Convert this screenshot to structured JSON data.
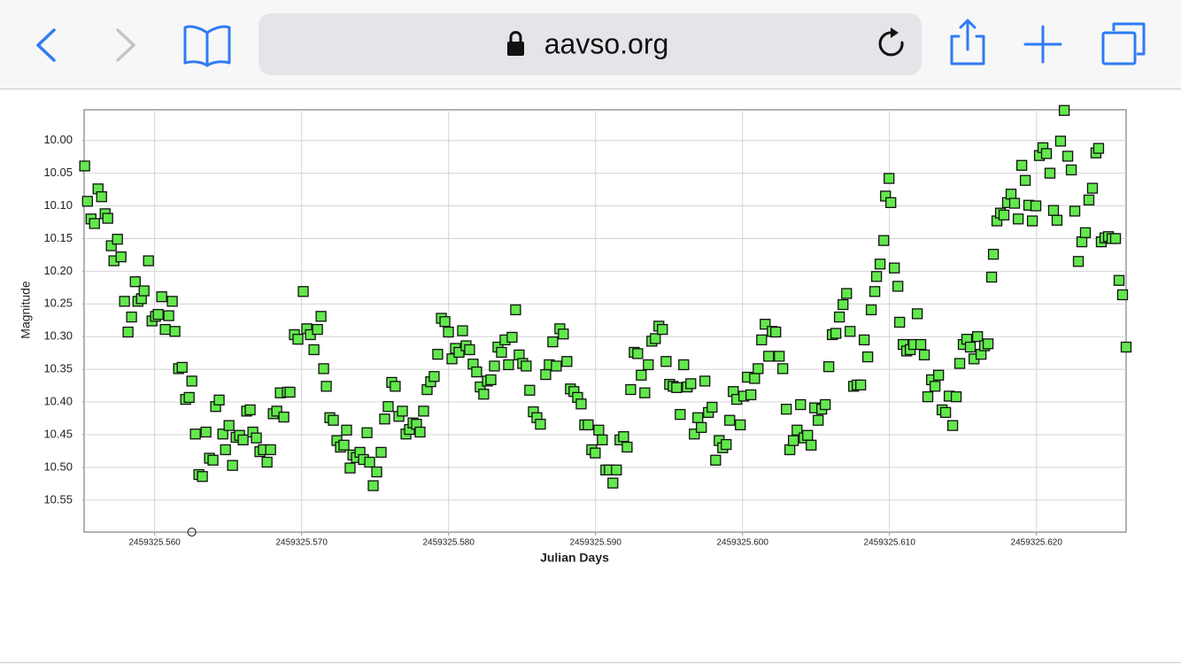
{
  "browser": {
    "url": "aavso.org"
  },
  "chart_data": {
    "type": "scatter",
    "x_label": "Julian Days",
    "y_label": "Magnitude",
    "xlim": [
      2459325.5552,
      2459325.6261
    ],
    "ylim": [
      9.953,
      10.599
    ],
    "y_inverted": true,
    "grid": true,
    "xticks": [
      {
        "value": 2459325.56,
        "label": "2459325.560"
      },
      {
        "value": 2459325.57,
        "label": "2459325.570"
      },
      {
        "value": 2459325.58,
        "label": "2459325.580"
      },
      {
        "value": 2459325.59,
        "label": "2459325.590"
      },
      {
        "value": 2459325.6,
        "label": "2459325.600"
      },
      {
        "value": 2459325.61,
        "label": "2459325.610"
      },
      {
        "value": 2459325.62,
        "label": "2459325.620"
      }
    ],
    "yticks": [
      {
        "value": 10,
        "label": "10.00"
      },
      {
        "value": 10.05,
        "label": "10.05"
      },
      {
        "value": 10.1,
        "label": "10.10"
      },
      {
        "value": 10.15,
        "label": "10.15"
      },
      {
        "value": 10.2,
        "label": "10.20"
      },
      {
        "value": 10.25,
        "label": "10.25"
      },
      {
        "value": 10.3,
        "label": "10.30"
      },
      {
        "value": 10.35,
        "label": "10.35"
      },
      {
        "value": 10.4,
        "label": "10.40"
      },
      {
        "value": 10.45,
        "label": "10.45"
      },
      {
        "value": 10.5,
        "label": "10.50"
      },
      {
        "value": 10.55,
        "label": "10.55"
      }
    ],
    "series": [
      {
        "marker": "square",
        "color": "#62e84c",
        "x": [
          2459325.55524,
          2459325.55543,
          2459325.55567,
          2459325.55591,
          2459325.55615,
          2459325.55639,
          2459325.55663,
          2459325.55681,
          2459325.55705,
          2459325.55723,
          2459325.55747,
          2459325.55771,
          2459325.55795,
          2459325.55819,
          2459325.55843,
          2459325.55868,
          2459325.55886,
          2459325.5591,
          2459325.55928,
          2459325.55958,
          2459325.55982,
          2459325.56006,
          2459325.56024,
          2459325.56048,
          2459325.56072,
          2459325.56096,
          2459325.5612,
          2459325.56138,
          2459325.56163,
          2459325.56187,
          2459325.56211,
          2459325.56235,
          2459325.56253,
          2459325.56277,
          2459325.56301,
          2459325.56325,
          2459325.56349,
          2459325.56373,
          2459325.56397,
          2459325.56415,
          2459325.56439,
          2459325.56464,
          2459325.56482,
          2459325.56506,
          2459325.5653,
          2459325.56554,
          2459325.56578,
          2459325.56602,
          2459325.56626,
          2459325.5665,
          2459325.56668,
          2459325.56692,
          2459325.56716,
          2459325.5674,
          2459325.56765,
          2459325.56789,
          2459325.56807,
          2459325.56831,
          2459325.56855,
          2459325.56879,
          2459325.56903,
          2459325.56921,
          2459325.56951,
          2459325.56975,
          2459325.57011,
          2459325.57035,
          2459325.5706,
          2459325.57084,
          2459325.57108,
          2459325.57132,
          2459325.5715,
          2459325.57168,
          2459325.57192,
          2459325.57216,
          2459325.5724,
          2459325.57264,
          2459325.57288,
          2459325.57306,
          2459325.5733,
          2459325.57349,
          2459325.57373,
          2459325.57397,
          2459325.57421,
          2459325.57445,
          2459325.57463,
          2459325.57487,
          2459325.57511,
          2459325.57541,
          2459325.57565,
          2459325.57589,
          2459325.57613,
          2459325.57637,
          2459325.57662,
          2459325.57686,
          2459325.5771,
          2459325.57734,
          2459325.57758,
          2459325.57782,
          2459325.57806,
          2459325.5783,
          2459325.57854,
          2459325.57878,
          2459325.57902,
          2459325.57926,
          2459325.57951,
          2459325.57975,
          2459325.57999,
          2459325.58023,
          2459325.58047,
          2459325.58071,
          2459325.58095,
          2459325.58119,
          2459325.58143,
          2459325.58167,
          2459325.58191,
          2459325.58215,
          2459325.58239,
          2459325.58264,
          2459325.58288,
          2459325.58312,
          2459325.58336,
          2459325.5836,
          2459325.58384,
          2459325.58408,
          2459325.58432,
          2459325.58456,
          2459325.5848,
          2459325.58504,
          2459325.58528,
          2459325.58552,
          2459325.58577,
          2459325.58601,
          2459325.58625,
          2459325.58661,
          2459325.58685,
          2459325.58709,
          2459325.58733,
          2459325.58757,
          2459325.58781,
          2459325.58805,
          2459325.58829,
          2459325.58853,
          2459325.58878,
          2459325.58902,
          2459325.58926,
          2459325.5895,
          2459325.58974,
          2459325.58998,
          2459325.59022,
          2459325.59046,
          2459325.5907,
          2459325.59094,
          2459325.59118,
          2459325.59142,
          2459325.59166,
          2459325.59191,
          2459325.59215,
          2459325.59239,
          2459325.59263,
          2459325.59287,
          2459325.59311,
          2459325.59335,
          2459325.59359,
          2459325.59383,
          2459325.59407,
          2459325.59431,
          2459325.59455,
          2459325.5948,
          2459325.59504,
          2459325.59528,
          2459325.59552,
          2459325.59576,
          2459325.596,
          2459325.59624,
          2459325.59648,
          2459325.59672,
          2459325.59696,
          2459325.5972,
          2459325.59744,
          2459325.59768,
          2459325.59793,
          2459325.59817,
          2459325.59841,
          2459325.59865,
          2459325.59889,
          2459325.59913,
          2459325.59937,
          2459325.59961,
          2459325.59985,
          2459325.60009,
          2459325.60033,
          2459325.60057,
          2459325.60082,
          2459325.60106,
          2459325.6013,
          2459325.60154,
          2459325.60178,
          2459325.60202,
          2459325.60226,
          2459325.6025,
          2459325.60274,
          2459325.60298,
          2459325.60322,
          2459325.60346,
          2459325.60371,
          2459325.60395,
          2459325.60419,
          2459325.60443,
          2459325.60467,
          2459325.60491,
          2459325.60515,
          2459325.60539,
          2459325.60563,
          2459325.60587,
          2459325.60611,
          2459325.60635,
          2459325.60659,
          2459325.60684,
          2459325.60708,
          2459325.60732,
          2459325.60756,
          2459325.6078,
          2459325.60804,
          2459325.60828,
          2459325.60852,
          2459325.60876,
          2459325.609,
          2459325.60912,
          2459325.60936,
          2459325.60961,
          2459325.60973,
          2459325.60997,
          2459325.61009,
          2459325.61033,
          2459325.61057,
          2459325.61069,
          2459325.61093,
          2459325.61117,
          2459325.61141,
          2459325.61165,
          2459325.61189,
          2459325.61213,
          2459325.61237,
          2459325.61261,
          2459325.61286,
          2459325.6131,
          2459325.61334,
          2459325.61358,
          2459325.61382,
          2459325.61406,
          2459325.6143,
          2459325.61454,
          2459325.61478,
          2459325.61502,
          2459325.61526,
          2459325.6155,
          2459325.61575,
          2459325.61599,
          2459325.61623,
          2459325.61647,
          2459325.61671,
          2459325.61695,
          2459325.61707,
          2459325.61731,
          2459325.61755,
          2459325.61779,
          2459325.61803,
          2459325.61827,
          2459325.61851,
          2459325.61876,
          2459325.619,
          2459325.61924,
          2459325.61948,
          2459325.61972,
          2459325.61996,
          2459325.6202,
          2459325.62044,
          2459325.62068,
          2459325.62092,
          2459325.62116,
          2459325.6214,
          2459325.62164,
          2459325.62189,
          2459325.62213,
          2459325.62237,
          2459325.62261,
          2459325.62285,
          2459325.62309,
          2459325.62333,
          2459325.62357,
          2459325.62381,
          2459325.62405,
          2459325.62423,
          2459325.62441,
          2459325.62466,
          2459325.6249,
          2459325.62514,
          2459325.62538,
          2459325.62562,
          2459325.62586,
          2459325.6261
        ],
        "values": [
          10.039,
          10.093,
          10.12,
          10.127,
          10.074,
          10.086,
          10.112,
          10.119,
          10.161,
          10.184,
          10.151,
          10.178,
          10.246,
          10.293,
          10.27,
          10.216,
          10.246,
          10.242,
          10.23,
          10.184,
          10.276,
          10.269,
          10.266,
          10.239,
          10.289,
          10.268,
          10.246,
          10.292,
          10.349,
          10.347,
          10.396,
          10.393,
          10.368,
          10.449,
          10.511,
          10.514,
          10.446,
          10.486,
          10.489,
          10.407,
          10.397,
          10.449,
          10.473,
          10.436,
          10.497,
          10.454,
          10.451,
          10.458,
          10.414,
          10.412,
          10.446,
          10.455,
          10.476,
          10.473,
          10.492,
          10.473,
          10.418,
          10.414,
          10.386,
          10.423,
          10.385,
          10.385,
          10.297,
          10.304,
          10.231,
          10.288,
          10.297,
          10.32,
          10.289,
          10.269,
          10.349,
          10.376,
          10.424,
          10.428,
          10.459,
          10.469,
          10.466,
          10.443,
          10.501,
          10.481,
          10.485,
          10.477,
          10.488,
          10.447,
          10.492,
          10.528,
          10.507,
          10.477,
          10.426,
          10.407,
          10.37,
          10.376,
          10.422,
          10.414,
          10.449,
          10.442,
          10.432,
          10.434,
          10.446,
          10.414,
          10.381,
          10.369,
          10.361,
          10.327,
          10.272,
          10.277,
          10.293,
          10.334,
          10.318,
          10.324,
          10.291,
          10.314,
          10.32,
          10.342,
          10.354,
          10.377,
          10.388,
          10.368,
          10.366,
          10.345,
          10.316,
          10.324,
          10.305,
          10.343,
          10.301,
          10.259,
          10.328,
          10.341,
          10.345,
          10.382,
          10.415,
          10.424,
          10.434,
          10.358,
          10.343,
          10.308,
          10.345,
          10.288,
          10.296,
          10.338,
          10.38,
          10.384,
          10.393,
          10.403,
          10.435,
          10.435,
          10.473,
          10.478,
          10.443,
          10.458,
          10.504,
          10.504,
          10.524,
          10.504,
          10.458,
          10.453,
          10.469,
          10.381,
          10.324,
          10.326,
          10.359,
          10.386,
          10.343,
          10.307,
          10.303,
          10.284,
          10.289,
          10.338,
          10.373,
          10.376,
          10.378,
          10.419,
          10.343,
          10.377,
          10.372,
          10.449,
          10.424,
          10.439,
          10.368,
          10.416,
          10.408,
          10.489,
          10.459,
          10.47,
          10.465,
          10.428,
          10.384,
          10.396,
          10.435,
          10.391,
          10.362,
          10.389,
          10.364,
          10.349,
          10.305,
          10.281,
          10.33,
          10.292,
          10.293,
          10.33,
          10.349,
          10.411,
          10.473,
          10.459,
          10.443,
          10.404,
          10.455,
          10.451,
          10.466,
          10.409,
          10.428,
          10.411,
          10.404,
          10.346,
          10.297,
          10.295,
          10.27,
          10.251,
          10.234,
          10.292,
          10.376,
          10.374,
          10.374,
          10.305,
          10.331,
          10.259,
          10.231,
          10.208,
          10.189,
          10.153,
          10.085,
          10.058,
          10.095,
          10.195,
          10.223,
          10.278,
          10.312,
          10.322,
          10.32,
          10.312,
          10.265,
          10.312,
          10.328,
          10.392,
          10.366,
          10.376,
          10.359,
          10.412,
          10.416,
          10.391,
          10.436,
          10.392,
          10.341,
          10.312,
          10.304,
          10.316,
          10.334,
          10.3,
          10.327,
          10.314,
          10.311,
          10.209,
          10.174,
          10.123,
          10.111,
          10.114,
          10.095,
          10.082,
          10.096,
          10.12,
          10.038,
          10.061,
          10.099,
          10.123,
          10.1,
          10.023,
          10.011,
          10.02,
          10.05,
          10.107,
          10.122,
          10.001,
          9.954,
          10.024,
          10.045,
          10.108,
          10.185,
          10.155,
          10.141,
          10.091,
          10.073,
          10.019,
          10.012,
          10.155,
          10.149,
          10.147,
          10.15,
          10.15,
          10.214,
          10.236,
          10.316
        ]
      },
      {
        "marker": "circle",
        "color": "#333333",
        "x": [
          2459325.56253
        ],
        "values": [
          10.599
        ]
      }
    ]
  }
}
